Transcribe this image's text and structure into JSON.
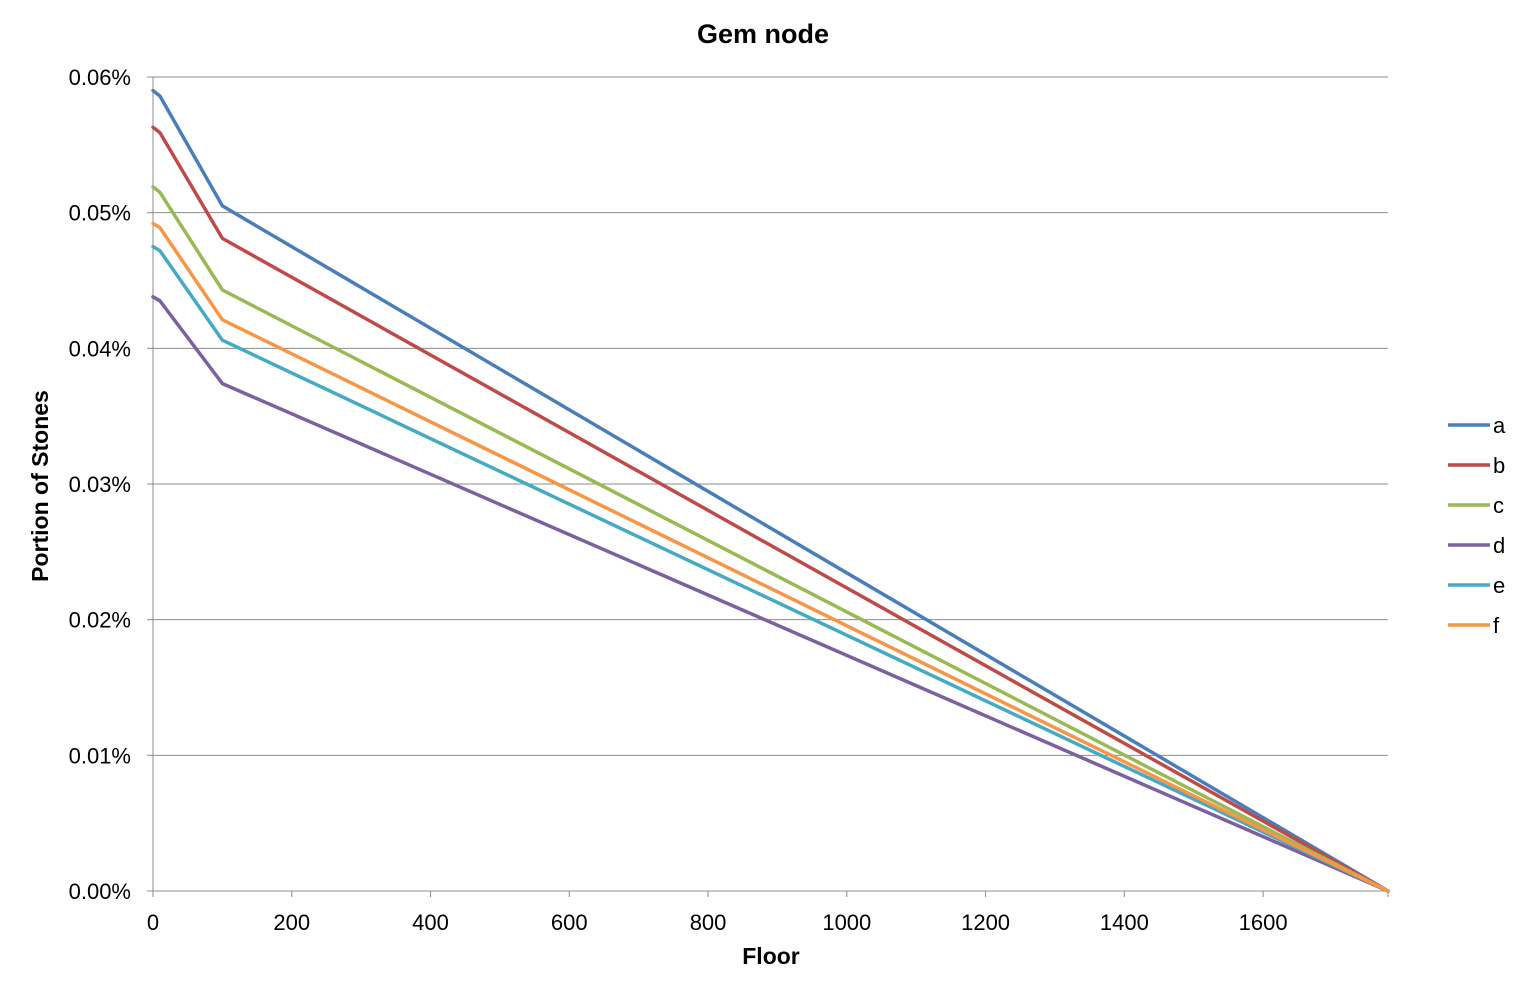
{
  "chart_data": {
    "type": "line",
    "title": "Gem node",
    "xlabel": "Floor",
    "ylabel": "Portion of Stones",
    "xlim": [
      0,
      1780
    ],
    "ylim": [
      0,
      0.0006
    ],
    "x_ticks": [
      0,
      200,
      400,
      600,
      800,
      1000,
      1200,
      1400,
      1600
    ],
    "x_tick_labels": [
      "0",
      "200",
      "400",
      "600",
      "800",
      "1000",
      "1200",
      "1400",
      "1600"
    ],
    "y_ticks": [
      0,
      0.0001,
      0.0002,
      0.0003,
      0.0004,
      0.0005,
      0.0006
    ],
    "y_tick_labels": [
      "0.00%",
      "0.01%",
      "0.02%",
      "0.03%",
      "0.04%",
      "0.05%",
      "0.06%"
    ],
    "grid": "horizontal",
    "legend_position": "right",
    "series": [
      {
        "name": "a",
        "color": "#4A7EBB",
        "x": [
          0,
          10,
          100,
          1780
        ],
        "y": [
          0.00059,
          0.000586,
          0.000505,
          0.0
        ]
      },
      {
        "name": "b",
        "color": "#BE4B48",
        "x": [
          0,
          10,
          100,
          1780
        ],
        "y": [
          0.000563,
          0.000559,
          0.000481,
          0.0
        ]
      },
      {
        "name": "c",
        "color": "#98B954",
        "x": [
          0,
          10,
          100,
          1780
        ],
        "y": [
          0.000519,
          0.000515,
          0.000443,
          0.0
        ]
      },
      {
        "name": "d",
        "color": "#7D60A0",
        "x": [
          0,
          10,
          100,
          1780
        ],
        "y": [
          0.000438,
          0.000435,
          0.000374,
          0.0
        ]
      },
      {
        "name": "e",
        "color": "#46AAC5",
        "x": [
          0,
          10,
          100,
          1780
        ],
        "y": [
          0.000475,
          0.000472,
          0.000406,
          0.0
        ]
      },
      {
        "name": "f",
        "color": "#F79646",
        "x": [
          0,
          10,
          100,
          1780
        ],
        "y": [
          0.000492,
          0.000489,
          0.000421,
          0.0
        ]
      }
    ]
  }
}
